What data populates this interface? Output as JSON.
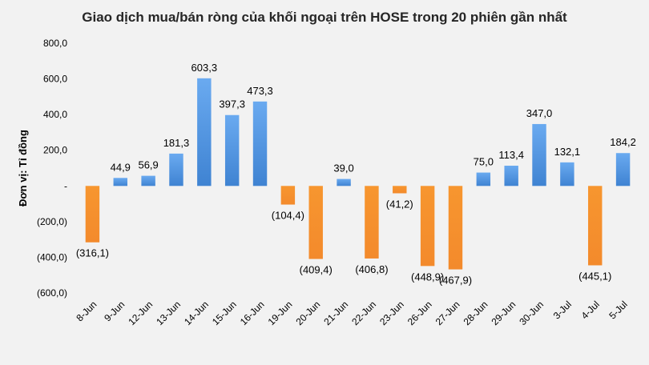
{
  "chart_data": {
    "type": "bar",
    "title": "Giao dịch mua/bán ròng của khối ngoại trên HOSE trong 20 phiên gần nhất",
    "xlabel": "",
    "ylabel": "Đơn vị: Tỉ đồng",
    "ylim": [
      -600,
      800
    ],
    "yticks": [
      800,
      600,
      400,
      200,
      0,
      -200,
      -400,
      -600
    ],
    "ytick_labels": [
      "800,0",
      "600,0",
      "400,0",
      "200,0",
      "-",
      "(200,0)",
      "(400,0)",
      "(600,0)"
    ],
    "grid": false,
    "legend": "none",
    "categories": [
      "8-Jun",
      "9-Jun",
      "12-Jun",
      "13-Jun",
      "14-Jun",
      "15-Jun",
      "16-Jun",
      "19-Jun",
      "20-Jun",
      "21-Jun",
      "22-Jun",
      "23-Jun",
      "26-Jun",
      "27-Jun",
      "28-Jun",
      "29-Jun",
      "30-Jun",
      "3-Jul",
      "4-Jul",
      "5-Jul"
    ],
    "values": [
      -316.1,
      44.9,
      56.9,
      181.3,
      603.3,
      397.3,
      473.3,
      -104.4,
      -409.4,
      39.0,
      -406.8,
      -41.2,
      -448.9,
      -467.9,
      75.0,
      113.4,
      347.0,
      132.1,
      -445.1,
      184.2
    ],
    "data_labels": [
      "(316,1)",
      "44,9",
      "56,9",
      "181,3",
      "603,3",
      "397,3",
      "473,3",
      "(104,4)",
      "(409,4)",
      "39,0",
      "(406,8)",
      "(41,2)",
      "(448,9)",
      "(467,9)",
      "75,0",
      "113,4",
      "347,0",
      "132,1",
      "(445,1)",
      "184,2"
    ],
    "colors": {
      "positive": "#4a8fd8",
      "negative": "#f58a2e"
    }
  }
}
